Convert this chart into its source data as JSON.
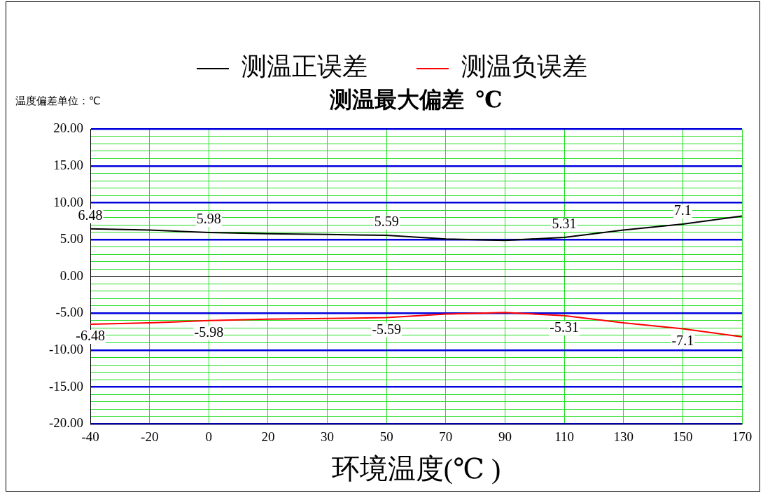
{
  "chart_data": {
    "type": "line",
    "title": "测温最大偏差  ℃",
    "xlabel": "环境温度(℃ )",
    "annotations": [
      "温度偏差单位：℃"
    ],
    "categories": [
      "-40",
      "-20",
      "0",
      "20",
      "30",
      "50",
      "70",
      "90",
      "110",
      "130",
      "150",
      "170"
    ],
    "ylim": [
      -20,
      20
    ],
    "yticks": [
      {
        "value": -20,
        "label": "-20.00"
      },
      {
        "value": -19,
        "label": null
      },
      {
        "value": -18,
        "label": null
      },
      {
        "value": -17,
        "label": null
      },
      {
        "value": -16,
        "label": null
      },
      {
        "value": -15,
        "label": "-15.00"
      },
      {
        "value": -14,
        "label": null
      },
      {
        "value": -13,
        "label": null
      },
      {
        "value": -12,
        "label": null
      },
      {
        "value": -11,
        "label": null
      },
      {
        "value": -10,
        "label": "-10.00"
      },
      {
        "value": -9,
        "label": null
      },
      {
        "value": -8,
        "label": null
      },
      {
        "value": -7,
        "label": null
      },
      {
        "value": -6,
        "label": null
      },
      {
        "value": -5,
        "label": "-5.00"
      },
      {
        "value": -4,
        "label": null
      },
      {
        "value": -3,
        "label": null
      },
      {
        "value": -2,
        "label": null
      },
      {
        "value": -1,
        "label": null
      },
      {
        "value": 0,
        "label": "0.00"
      },
      {
        "value": 1,
        "label": null
      },
      {
        "value": 2,
        "label": null
      },
      {
        "value": 3,
        "label": null
      },
      {
        "value": 4,
        "label": null
      },
      {
        "value": 5,
        "label": "5.00"
      },
      {
        "value": 6,
        "label": null
      },
      {
        "value": 7,
        "label": null
      },
      {
        "value": 8,
        "label": null
      },
      {
        "value": 9,
        "label": null
      },
      {
        "value": 10,
        "label": "10.00"
      },
      {
        "value": 11,
        "label": null
      },
      {
        "value": 12,
        "label": null
      },
      {
        "value": 13,
        "label": null
      },
      {
        "value": 14,
        "label": null
      },
      {
        "value": 15,
        "label": "15.00"
      },
      {
        "value": 16,
        "label": null
      },
      {
        "value": 17,
        "label": null
      },
      {
        "value": 18,
        "label": null
      },
      {
        "value": 19,
        "label": null
      },
      {
        "value": 20,
        "label": "20.00"
      }
    ],
    "grid": true,
    "legend": "top",
    "series": [
      {
        "name": "测温正误差",
        "color": "#000000",
        "values": [
          6.48,
          6.3,
          5.98,
          5.8,
          5.7,
          5.59,
          5.1,
          4.9,
          5.31,
          6.3,
          7.1,
          8.2
        ],
        "value_labels": [
          "6.48",
          null,
          "5.98",
          null,
          null,
          "5.59",
          null,
          null,
          "5.31",
          null,
          "7.1",
          null
        ]
      },
      {
        "name": "测温负误差",
        "color": "#ff0000",
        "values": [
          -6.48,
          -6.3,
          -5.98,
          -5.8,
          -5.7,
          -5.59,
          -5.1,
          -4.9,
          -5.31,
          -6.3,
          -7.1,
          -8.2
        ],
        "value_labels": [
          "-6.48",
          null,
          "-5.98",
          null,
          null,
          "-5.59",
          null,
          null,
          "-5.31",
          null,
          "-7.1",
          null
        ]
      }
    ]
  }
}
